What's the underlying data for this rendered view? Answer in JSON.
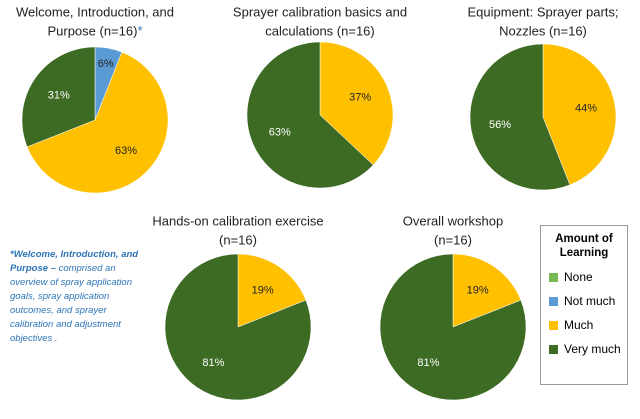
{
  "chart_data": [
    {
      "type": "pie",
      "title": [
        "Welcome, Introduction, and",
        "Purpose (n=16)"
      ],
      "title_marker": "*",
      "categories": [
        "Not much",
        "Much",
        "Very much"
      ],
      "values": [
        6,
        63,
        31
      ],
      "value_labels": [
        "6%",
        "63%",
        "31%"
      ]
    },
    {
      "type": "pie",
      "title": [
        "Sprayer calibration basics and",
        "calculations (n=16)"
      ],
      "categories": [
        "Much",
        "Very much"
      ],
      "values": [
        37,
        63
      ],
      "value_labels": [
        "37%",
        "63%"
      ]
    },
    {
      "type": "pie",
      "title": [
        "Equipment: Sprayer parts;",
        "Nozzles (n=16)"
      ],
      "categories": [
        "Much",
        "Very much"
      ],
      "values": [
        44,
        56
      ],
      "value_labels": [
        "44%",
        "56%"
      ]
    },
    {
      "type": "pie",
      "title": [
        "Hands-on calibration exercise",
        "(n=16)"
      ],
      "categories": [
        "Much",
        "Very much"
      ],
      "values": [
        19,
        81
      ],
      "value_labels": [
        "19%",
        "81%"
      ]
    },
    {
      "type": "pie",
      "title": [
        "Overall workshop",
        "(n=16)"
      ],
      "categories": [
        "Much",
        "Very much"
      ],
      "values": [
        19,
        81
      ],
      "value_labels": [
        "19%",
        "81%"
      ]
    }
  ],
  "legend": {
    "title": "Amount of Learning",
    "items": [
      {
        "name": "None",
        "color": "#76b852"
      },
      {
        "name": "Not much",
        "color": "#5b9bd5"
      },
      {
        "name": "Much",
        "color": "#ffc000"
      },
      {
        "name": "Very much",
        "color": "#3d6b24"
      }
    ]
  },
  "note": {
    "bold": "*Welcome, Introduction, and Purpose –",
    "text": "comprised an overview of spray application goals, spray application outcomes, and sprayer calibration and adjustment objectives ."
  }
}
